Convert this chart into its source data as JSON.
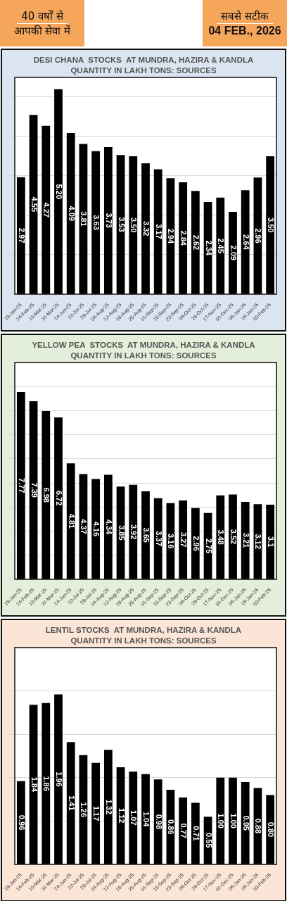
{
  "chart_data": [
    {
      "type": "other",
      "annotations": [
        "40 वर्षों से",
        "आपकी सेवा में",
        "सबसे सटीक",
        "04 FEB., 2026"
      ]
    },
    {
      "type": "bar",
      "title": "DESI CHANA  STOCKS  AT MUNDRA, HAZIRA & KANDLA",
      "subtitle": "QUANTITY IN LAKH TONS: SOURCES",
      "categories": [
        "18-Jan-25",
        "24-Feb-25",
        "10-Mar-25",
        "31-Mar-25",
        "24-Jun-25",
        "22-Jul-25",
        "28-Jul-25",
        "04-Aug-25",
        "12-Aug-25",
        "18-Aug-25",
        "25-Aug-25",
        "01-Sep-25",
        "15-Sep-25",
        "23-Sep-25",
        "06-Oct-25",
        "28-Oct-25",
        "17-Nov-25",
        "01-Dec-25",
        "06-Jan-26",
        "16-Jan-26",
        "03-Feb-26"
      ],
      "values": [
        2.97,
        4.55,
        4.27,
        5.2,
        4.09,
        3.81,
        3.63,
        3.73,
        3.53,
        3.5,
        3.32,
        3.17,
        2.94,
        2.84,
        2.62,
        2.34,
        2.45,
        2.09,
        2.64,
        2.96,
        3.5
      ],
      "value_labels": [
        "2.97",
        "4.55",
        "4.27",
        "5.20",
        "4.09",
        "3.81",
        "3.63",
        "3.73",
        "3.53",
        "3.50",
        "3.32",
        "3.17",
        "2.94",
        "2.84",
        "2.62",
        "2.34",
        "2.45",
        "2.09",
        "2.64",
        "2.96",
        "3.50"
      ],
      "color": "#000000",
      "ylim": [
        0,
        5.5
      ],
      "yticks": [
        {
          "value": 0,
          "label": null
        },
        {
          "value": 1,
          "label": null
        },
        {
          "value": 2,
          "label": null
        },
        {
          "value": 3,
          "label": null
        },
        {
          "value": 4,
          "label": null
        },
        {
          "value": 5,
          "label": null
        }
      ],
      "grid": "y",
      "tick_labels": "x",
      "legend": false
    },
    {
      "type": "bar",
      "title": "YELLOW PEA  STOCKS  AT MUNDRA, HAZIRA & KANDLA",
      "subtitle": "QUANTITY IN LAKH TONS: SOURCES",
      "categories": [
        "18-Jan-25",
        "24-Feb-25",
        "10-Mar-25",
        "31-Mar-25",
        "24-Jun-25",
        "22-Jul-25",
        "28-Jul-25",
        "04-Aug-25",
        "12-Aug-25",
        "18-Aug-25",
        "25-Aug-25",
        "01-Sep-25",
        "15-Sep-25",
        "23-Sep-25",
        "06-Oct-25",
        "28-Oct-25",
        "17-Nov-25",
        "01-Dec-25",
        "06-Jan-26",
        "16-Jan-26",
        "03-Feb-26"
      ],
      "values": [
        7.77,
        7.39,
        6.98,
        6.72,
        4.81,
        4.37,
        4.16,
        4.34,
        3.85,
        3.92,
        3.65,
        3.37,
        3.16,
        3.27,
        2.96,
        2.75,
        3.48,
        3.52,
        3.21,
        3.12,
        3.1
      ],
      "value_labels": [
        "7.77",
        "7.39",
        "6.98",
        "6.72",
        "4.81",
        "4.37",
        "4.16",
        "4.34",
        "3.85",
        "3.92",
        "3.65",
        "3.37",
        "3.16",
        "3.27",
        "2.96",
        "2.75",
        "3.48",
        "3.52",
        "3.21",
        "3.12",
        "3.1"
      ],
      "color": "#000000",
      "ylim": [
        0,
        9
      ],
      "yticks": [
        {
          "value": 0,
          "label": null
        },
        {
          "value": 1,
          "label": null
        },
        {
          "value": 2,
          "label": null
        },
        {
          "value": 3,
          "label": null
        },
        {
          "value": 4,
          "label": null
        },
        {
          "value": 5,
          "label": null
        },
        {
          "value": 6,
          "label": null
        },
        {
          "value": 7,
          "label": null
        },
        {
          "value": 8,
          "label": null
        }
      ],
      "grid": "y",
      "tick_labels": "x",
      "legend": false
    },
    {
      "type": "bar",
      "title": "LENTIL STOCKS  AT MUNDRA, HAZIRA & KANDLA",
      "subtitle": "QUANTITY IN LAKH TONS: SOURCES",
      "categories": [
        "18-Jan-25",
        "24-Feb-25",
        "10-Mar-25",
        "31-Mar-25",
        "24-Jun-25",
        "22-Jul-25",
        "28-Jul-25",
        "04-Aug-25",
        "12-Aug-25",
        "18-Aug-25",
        "25-Aug-25",
        "01-Sep-25",
        "15-Sep-25",
        "23-Sep-25",
        "06-Oct-25",
        "28-Oct-25",
        "17-Nov-25",
        "01-Dec-25",
        "06-Jan-26",
        "16-Jan-26",
        "03-Feb-26"
      ],
      "values": [
        0.96,
        1.84,
        1.86,
        1.96,
        1.41,
        1.26,
        1.17,
        1.32,
        1.12,
        1.07,
        1.04,
        0.98,
        0.86,
        0.77,
        0.71,
        0.55,
        1.0,
        1.0,
        0.95,
        0.88,
        0.8
      ],
      "value_labels": [
        "0.96",
        "1.84",
        "1.86",
        "1.96",
        "1.41",
        "1.26",
        "1.17",
        "1.32",
        "1.12",
        "1.07",
        "1.04",
        "0.98",
        "0.86",
        "0.77",
        "0.71",
        "0.55",
        "1.00",
        "1.00",
        "0.95",
        "0.88",
        "0.80"
      ],
      "color": "#000000",
      "ylim": [
        0,
        2.5
      ],
      "yticks": [
        {
          "value": 0,
          "label": null
        },
        {
          "value": 0.5,
          "label": null
        },
        {
          "value": 1,
          "label": null
        },
        {
          "value": 1.5,
          "label": null
        },
        {
          "value": 2,
          "label": null
        }
      ],
      "grid": "y",
      "tick_labels": "x",
      "legend": false
    }
  ]
}
